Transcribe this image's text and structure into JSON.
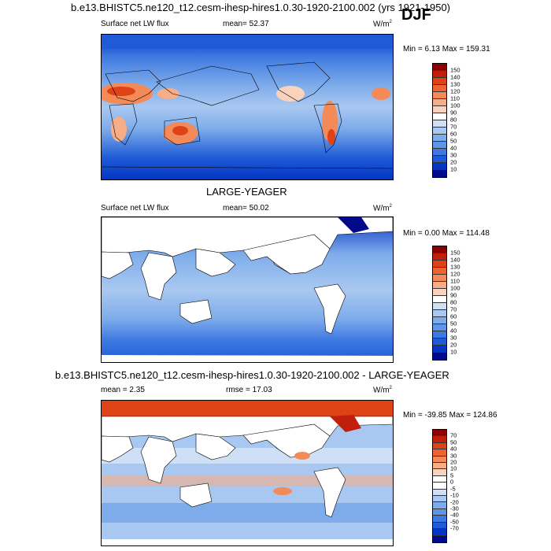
{
  "season": "DJF",
  "panels": [
    {
      "title": "b.e13.BHISTC5.ne120_t12.cesm-ihesp-hires1.0.30-1920-2100.002 (yrs 1921-1950)",
      "left_label": "Surface net LW flux",
      "center_label": "mean=  52.37",
      "units": "W/m",
      "units_sup": "2",
      "minmax": "Min =   6.13 Max = 159.31",
      "colorbar_labels": [
        "150",
        "140",
        "130",
        "120",
        "110",
        "100",
        "90",
        "80",
        "70",
        "60",
        "50",
        "40",
        "30",
        "20",
        "10"
      ],
      "colors": [
        "#8b0000",
        "#c0200b",
        "#dd4317",
        "#ee6334",
        "#f48a58",
        "#f7ad86",
        "#fbd3bc",
        "#ffffff",
        "#cfe0f6",
        "#a9c8f1",
        "#7eacea",
        "#5e95e6",
        "#3e79e1",
        "#1f5bd6",
        "#0535c4",
        "#000a8a"
      ]
    },
    {
      "title": "LARGE-YEAGER",
      "left_label": "Surface net LW flux",
      "center_label": "mean=  50.02",
      "units": "W/m",
      "units_sup": "2",
      "minmax": "Min =   0.00 Max = 114.48",
      "colorbar_labels": [
        "150",
        "140",
        "130",
        "120",
        "110",
        "100",
        "90",
        "80",
        "70",
        "60",
        "50",
        "40",
        "30",
        "20",
        "10"
      ],
      "colors": [
        "#8b0000",
        "#c0200b",
        "#dd4317",
        "#ee6334",
        "#f48a58",
        "#f7ad86",
        "#fbd3bc",
        "#ffffff",
        "#cfe0f6",
        "#a9c8f1",
        "#7eacea",
        "#5e95e6",
        "#3e79e1",
        "#1f5bd6",
        "#0535c4",
        "#000a8a"
      ]
    },
    {
      "title": "b.e13.BHISTC5.ne120_t12.cesm-ihesp-hires1.0.30-1920-2100.002 - LARGE-YEAGER",
      "left_label": "mean =   2.35",
      "center_label": "rmse =  17.03",
      "units": "W/m",
      "units_sup": "2",
      "minmax": "Min = -39.85 Max = 124.86",
      "colorbar_labels": [
        "70",
        "50",
        "40",
        "30",
        "20",
        "10",
        "5",
        "0",
        "-5",
        "-10",
        "-20",
        "-30",
        "-40",
        "-50",
        "-70"
      ],
      "colors": [
        "#8b0000",
        "#c0200b",
        "#dd4317",
        "#ee6334",
        "#f48a58",
        "#f7ad86",
        "#fbd3bc",
        "#ffffff",
        "#ffffff",
        "#cfe0f6",
        "#a9c8f1",
        "#7eacea",
        "#5e95e6",
        "#3e79e1",
        "#1f5bd6",
        "#0535c4",
        "#000a8a"
      ]
    }
  ]
}
